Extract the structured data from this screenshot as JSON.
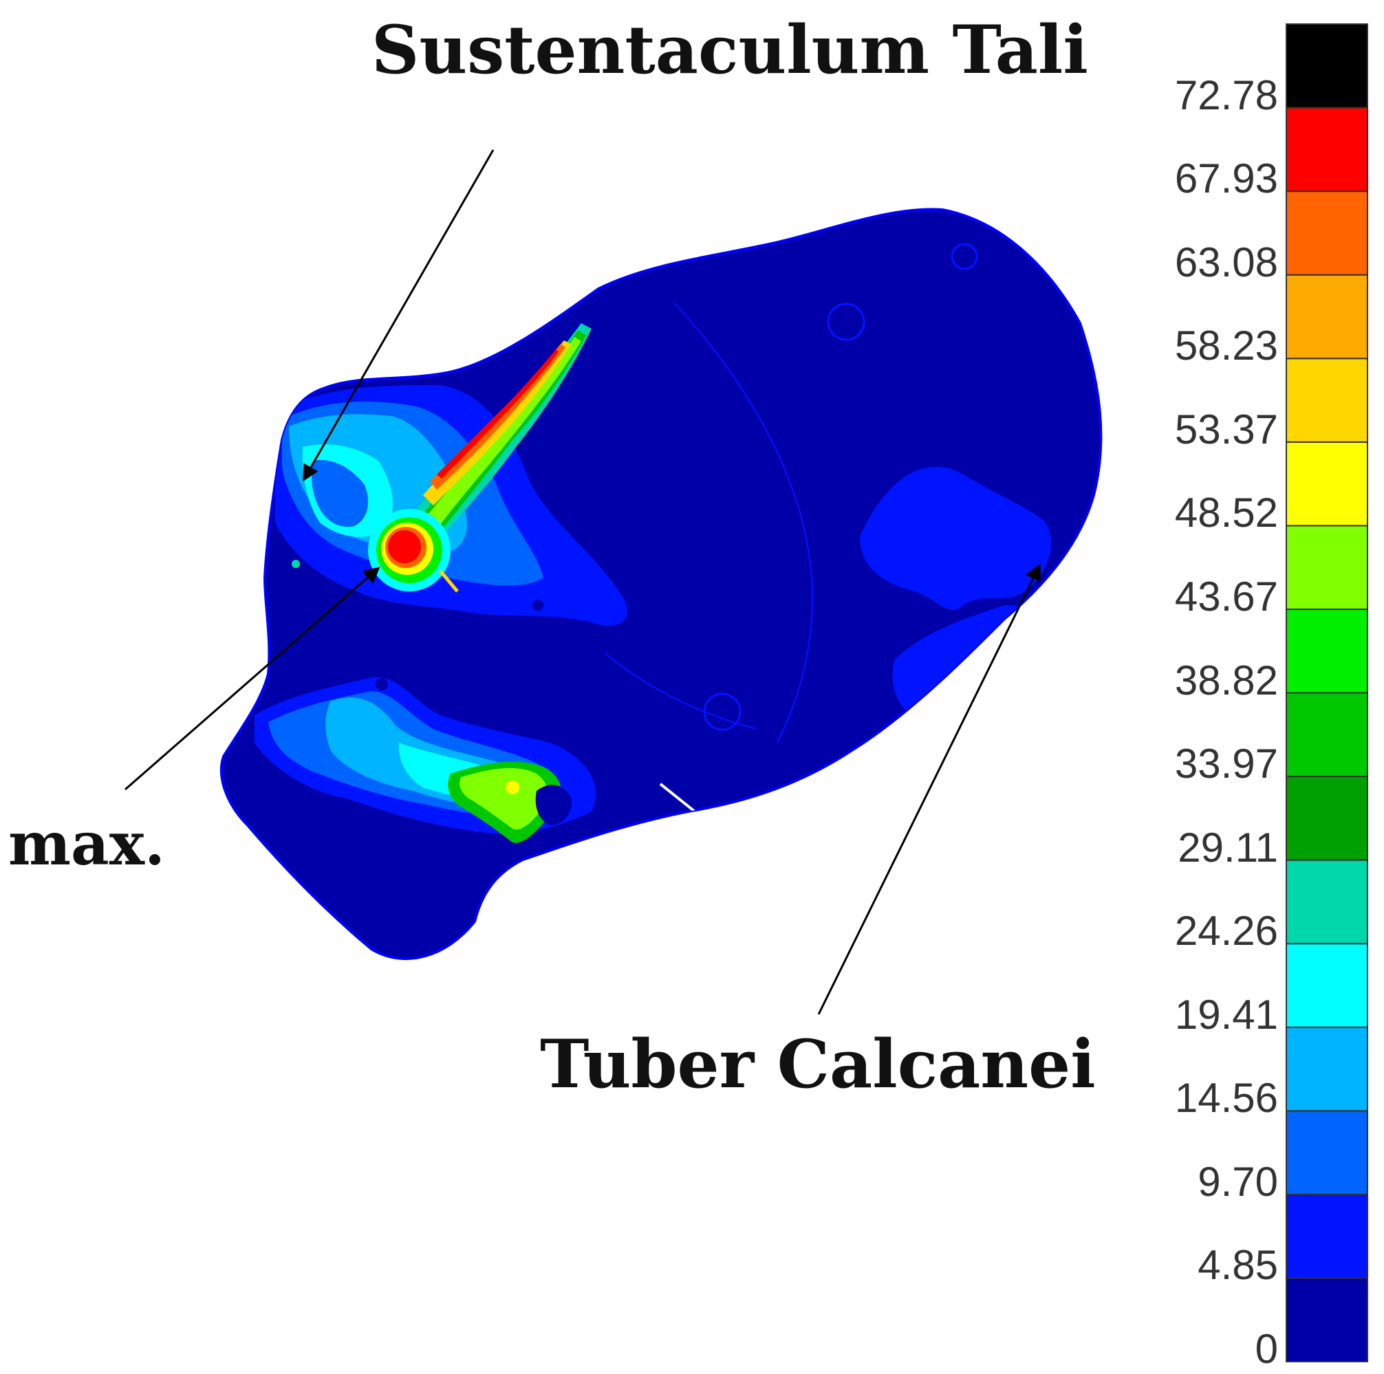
{
  "labels": {
    "top": "Sustentaculum Tali",
    "left": "max.",
    "bottom": "Tuber Calcanei"
  },
  "colorbar": {
    "ticks": [
      "0",
      "4.85",
      "9.70",
      "14.56",
      "19.41",
      "24.26",
      "29.11",
      "33.97",
      "38.82",
      "43.67",
      "48.52",
      "53.37",
      "58.23",
      "63.08",
      "67.93",
      "72.78"
    ],
    "colors_bottom_to_top": [
      "#0000a8",
      "#0014ff",
      "#0064ff",
      "#00b4ff",
      "#00ffff",
      "#00d7aa",
      "#00a000",
      "#00c800",
      "#00f000",
      "#80ff00",
      "#ffff00",
      "#ffd700",
      "#ffaa00",
      "#ff6400",
      "#ff0000",
      "#000000"
    ]
  }
}
